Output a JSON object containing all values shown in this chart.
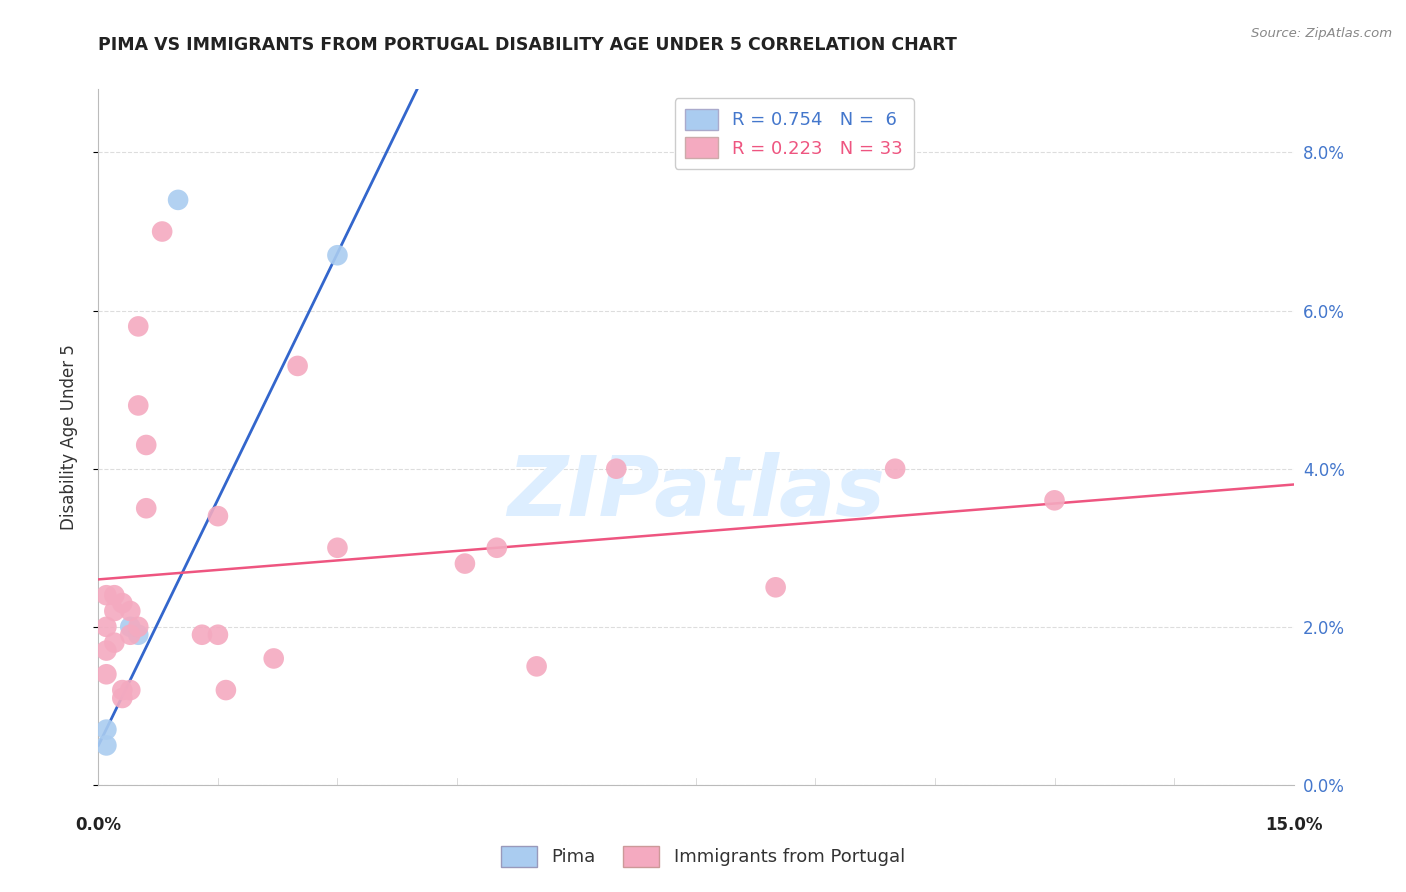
{
  "title": "PIMA VS IMMIGRANTS FROM PORTUGAL DISABILITY AGE UNDER 5 CORRELATION CHART",
  "source": "Source: ZipAtlas.com",
  "ylabel": "Disability Age Under 5",
  "xlim": [
    0.0,
    0.15
  ],
  "ylim": [
    0.0,
    0.088
  ],
  "yticks": [
    0.0,
    0.02,
    0.04,
    0.06,
    0.08
  ],
  "pima_r": 0.754,
  "pima_n": 6,
  "portugal_r": 0.223,
  "portugal_n": 33,
  "pima_color": "#aaccf0",
  "portugal_color": "#f4aac0",
  "pima_line_color": "#3366cc",
  "portugal_line_color": "#ee5580",
  "pima_points": [
    [
      0.001,
      0.005
    ],
    [
      0.001,
      0.007
    ],
    [
      0.004,
      0.02
    ],
    [
      0.005,
      0.019
    ],
    [
      0.01,
      0.074
    ],
    [
      0.03,
      0.067
    ]
  ],
  "portugal_points": [
    [
      0.001,
      0.024
    ],
    [
      0.001,
      0.02
    ],
    [
      0.001,
      0.017
    ],
    [
      0.001,
      0.014
    ],
    [
      0.002,
      0.024
    ],
    [
      0.002,
      0.022
    ],
    [
      0.002,
      0.018
    ],
    [
      0.003,
      0.012
    ],
    [
      0.003,
      0.011
    ],
    [
      0.003,
      0.023
    ],
    [
      0.004,
      0.022
    ],
    [
      0.004,
      0.019
    ],
    [
      0.004,
      0.012
    ],
    [
      0.005,
      0.02
    ],
    [
      0.005,
      0.048
    ],
    [
      0.005,
      0.058
    ],
    [
      0.006,
      0.035
    ],
    [
      0.006,
      0.043
    ],
    [
      0.008,
      0.07
    ],
    [
      0.013,
      0.019
    ],
    [
      0.015,
      0.034
    ],
    [
      0.015,
      0.019
    ],
    [
      0.016,
      0.012
    ],
    [
      0.022,
      0.016
    ],
    [
      0.025,
      0.053
    ],
    [
      0.03,
      0.03
    ],
    [
      0.046,
      0.028
    ],
    [
      0.05,
      0.03
    ],
    [
      0.055,
      0.015
    ],
    [
      0.065,
      0.04
    ],
    [
      0.085,
      0.025
    ],
    [
      0.1,
      0.04
    ],
    [
      0.12,
      0.036
    ]
  ],
  "pima_line_x": [
    0.0,
    0.04
  ],
  "pima_line_y": [
    0.005,
    0.088
  ],
  "portugal_line_x": [
    0.0,
    0.15
  ],
  "portugal_line_y": [
    0.026,
    0.038
  ],
  "background_color": "#ffffff",
  "grid_color": "#dddddd",
  "watermark_text": "ZIPatlas",
  "watermark_color": "#ddeeff",
  "legend_r_color": "#4477cc",
  "bottom_label_pima": "Pima",
  "bottom_label_portugal": "Immigrants from Portugal"
}
